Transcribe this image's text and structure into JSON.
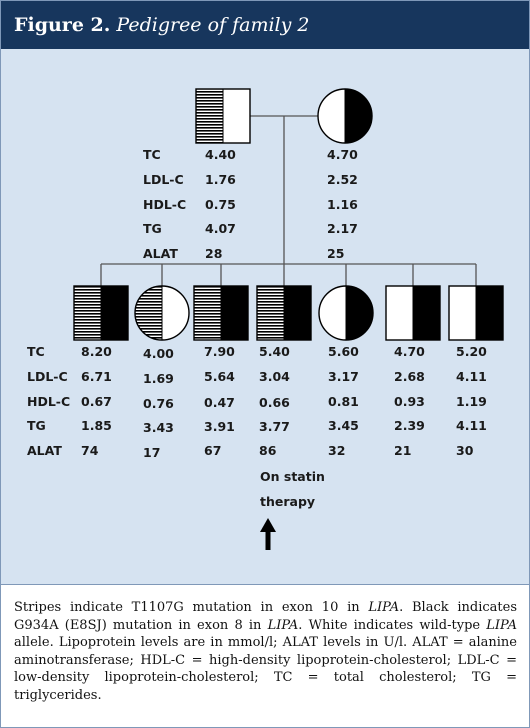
{
  "header": {
    "figure_label": "Figure 2.",
    "figure_title": "Pedigree of family 2"
  },
  "parents": {
    "labels": [
      "TC",
      "LDL-C",
      "HDL-C",
      "TG",
      "ALAT"
    ],
    "father_values": [
      "4.40",
      "1.76",
      "0.75",
      "4.07",
      "28"
    ],
    "mother_values": [
      "4.70",
      "2.52",
      "1.16",
      "2.17",
      "25"
    ]
  },
  "children": {
    "labels": [
      "TC",
      "LDL-C",
      "HDL-C",
      "TG",
      "ALAT"
    ],
    "values": [
      [
        "8.20",
        "6.71",
        "0.67",
        "1.85",
        "74"
      ],
      [
        "4.00",
        "1.69",
        "0.76",
        "3.43",
        "17"
      ],
      [
        "7.90",
        "5.64",
        "0.47",
        "3.91",
        "67"
      ],
      [
        "5.40",
        "3.04",
        "0.66",
        "3.77",
        "86"
      ],
      [
        "5.60",
        "3.17",
        "0.81",
        "3.45",
        "32"
      ],
      [
        "4.70",
        "2.68",
        "0.93",
        "2.39",
        "21"
      ],
      [
        "5.20",
        "4.11",
        "1.19",
        "4.11",
        "30"
      ]
    ],
    "note_line1": "On statin",
    "note_line2": "therapy"
  },
  "caption": {
    "p1": "Stripes indicate T1107G mutation in exon 10 in ",
    "gene1": "LIPA",
    "p2": ". Black indicates G934A (E8SJ) mutation in exon 8 in ",
    "gene2": "LIPA",
    "p3": ". White indicates wild-type ",
    "gene3": "LIPA",
    "p4": " allele. Lipoprotein levels are in mmol/l; ALAT levels in U/l. ALAT = alanine aminotransferase; HDL-C = high-density lipoprotein-cholesterol; LDL-C = low-density lipoprotein-cholesterol; TC = total cholesterol; TG = triglycerides."
  },
  "colors": {
    "header_bg": "#17365d",
    "panel_bg": "#d6e3f1",
    "symbol": "#000000"
  }
}
